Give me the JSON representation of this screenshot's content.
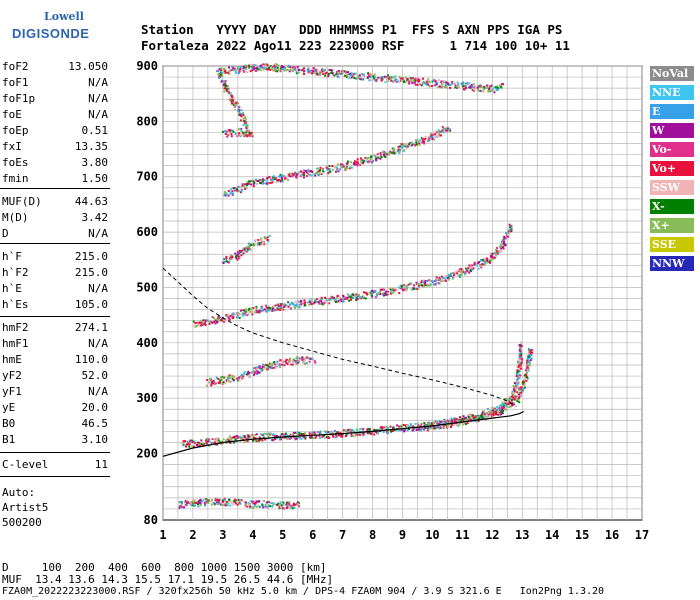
{
  "logo": {
    "line1": "Lowell",
    "line2": "DIGISONDE"
  },
  "header": {
    "row1": "Station   YYYY DAY   DDD HHMMSS P1  FFS S AXN PPS IGA PS",
    "row2": "Fortaleza 2022 Ago11 223 223000 RSF      1 714 100 10+ 11"
  },
  "params_group1": [
    {
      "k": "foF2",
      "v": "13.050"
    },
    {
      "k": "foF1",
      "v": "N/A"
    },
    {
      "k": "foF1p",
      "v": "N/A"
    },
    {
      "k": "foE",
      "v": "N/A"
    },
    {
      "k": "foEp",
      "v": "0.51"
    },
    {
      "k": "fxI",
      "v": "13.35"
    },
    {
      "k": "foEs",
      "v": "3.80"
    },
    {
      "k": "fmin",
      "v": "1.50"
    }
  ],
  "params_group2": [
    {
      "k": "MUF(D)",
      "v": "44.63"
    },
    {
      "k": "M(D)",
      "v": "3.42"
    },
    {
      "k": "D",
      "v": "N/A"
    }
  ],
  "params_group3": [
    {
      "k": "h`F",
      "v": "215.0"
    },
    {
      "k": "h`F2",
      "v": "215.0"
    },
    {
      "k": "h`E",
      "v": "N/A"
    },
    {
      "k": "h`Es",
      "v": "105.0"
    }
  ],
  "params_group4": [
    {
      "k": "hmF2",
      "v": "274.1"
    },
    {
      "k": "hmF1",
      "v": "N/A"
    },
    {
      "k": "hmE",
      "v": "110.0"
    },
    {
      "k": "yF2",
      "v": "52.0"
    },
    {
      "k": "yF1",
      "v": "N/A"
    },
    {
      "k": "yE",
      "v": "20.0"
    },
    {
      "k": "B0",
      "v": "46.5"
    },
    {
      "k": "B1",
      "v": "3.10"
    }
  ],
  "params_group5": [
    {
      "k": "C-level",
      "v": "11"
    }
  ],
  "side_text": {
    "auto": "Auto:",
    "artist": "Artist5",
    "version": "500200"
  },
  "legend": [
    {
      "label": "NoVal",
      "color": "#8c8c8c"
    },
    {
      "label": "NNE",
      "color": "#3fc6f0"
    },
    {
      "label": "E",
      "color": "#36a0e8"
    },
    {
      "label": "W",
      "color": "#a0109c"
    },
    {
      "label": "Vo-",
      "color": "#e0308c"
    },
    {
      "label": "Vo+",
      "color": "#e8103c"
    },
    {
      "label": "SSW",
      "color": "#f0b4b4"
    },
    {
      "label": "X-",
      "color": "#008000"
    },
    {
      "label": "X+",
      "color": "#88bc58"
    },
    {
      "label": "SSE",
      "color": "#c8c800"
    },
    {
      "label": "NNW",
      "color": "#2828b8"
    }
  ],
  "footer": {
    "d_row": "D     100  200  400  600  800 1000 1500 3000 [km]",
    "muf_row": "MUF  13.4 13.6 14.3 15.5 17.1 19.5 26.5 44.6 [MHz]",
    "file_row": "FZA0M_2022223223000.RSF / 320fx256h 50 kHz 5.0 km / DPS-4 FZA0M 904 / 3.9 S 321.6 E   Ion2Png 1.3.20"
  },
  "chart_data": {
    "type": "scatter",
    "xlabel": "",
    "ylabel": "",
    "xlim": [
      1,
      17
    ],
    "ylim": [
      80,
      900
    ],
    "x_ticks": [
      1,
      2,
      3,
      4,
      5,
      6,
      7,
      8,
      9,
      10,
      11,
      12,
      13,
      14,
      15,
      16,
      17
    ],
    "y_ticks": [
      80,
      200,
      300,
      400,
      500,
      600,
      700,
      800,
      900
    ],
    "grid": true,
    "traces": [
      {
        "name": "Es",
        "points": [
          [
            1.5,
            110
          ],
          [
            2.0,
            112
          ],
          [
            2.5,
            115
          ],
          [
            3.0,
            115
          ],
          [
            3.5,
            112
          ],
          [
            4.0,
            110
          ],
          [
            4.5,
            110
          ],
          [
            5.0,
            108
          ],
          [
            5.5,
            108
          ]
        ]
      },
      {
        "name": "F2 O-trace",
        "points": [
          [
            1.6,
            218
          ],
          [
            2.5,
            222
          ],
          [
            3.5,
            228
          ],
          [
            4.5,
            232
          ],
          [
            5.5,
            234
          ],
          [
            6.5,
            236
          ],
          [
            7.5,
            240
          ],
          [
            8.5,
            245
          ],
          [
            9.5,
            250
          ],
          [
            10.5,
            258
          ],
          [
            11.5,
            270
          ],
          [
            12.2,
            285
          ],
          [
            12.6,
            300
          ],
          [
            12.8,
            330
          ],
          [
            12.9,
            370
          ],
          [
            12.95,
            400
          ]
        ]
      },
      {
        "name": "F2 X-trace",
        "points": [
          [
            9.5,
            248
          ],
          [
            10.5,
            255
          ],
          [
            11.5,
            265
          ],
          [
            12.3,
            280
          ],
          [
            12.8,
            300
          ],
          [
            13.1,
            340
          ],
          [
            13.25,
            390
          ]
        ]
      },
      {
        "name": "F2 2nd hop",
        "points": [
          [
            2.0,
            435
          ],
          [
            3.0,
            445
          ],
          [
            4.0,
            460
          ],
          [
            5.0,
            468
          ],
          [
            6.0,
            475
          ],
          [
            7.0,
            482
          ],
          [
            8.0,
            490
          ],
          [
            9.0,
            500
          ],
          [
            10.0,
            512
          ],
          [
            11.0,
            530
          ],
          [
            11.8,
            550
          ],
          [
            12.3,
            575
          ],
          [
            12.6,
            610
          ]
        ]
      },
      {
        "name": "F2 3rd hop",
        "points": [
          [
            3.0,
            670
          ],
          [
            4.0,
            690
          ],
          [
            5.0,
            700
          ],
          [
            6.0,
            710
          ],
          [
            7.0,
            720
          ],
          [
            8.0,
            735
          ],
          [
            9.0,
            755
          ],
          [
            10.0,
            775
          ],
          [
            10.5,
            790
          ]
        ]
      },
      {
        "name": "Es multiple",
        "points": [
          [
            2.5,
            330
          ],
          [
            3.0,
            335
          ],
          [
            3.5,
            340
          ],
          [
            4.0,
            350
          ],
          [
            4.5,
            360
          ],
          [
            5.0,
            365
          ],
          [
            5.5,
            370
          ],
          [
            6.0,
            370
          ]
        ]
      },
      {
        "name": "Es multiple 2",
        "points": [
          [
            3.0,
            550
          ],
          [
            3.5,
            560
          ],
          [
            4.0,
            580
          ],
          [
            4.5,
            590
          ]
        ]
      },
      {
        "name": "high",
        "points": [
          [
            3.0,
            780
          ],
          [
            3.5,
            782
          ],
          [
            3.9,
            780
          ],
          [
            2.8,
            890
          ],
          [
            3.5,
            895
          ],
          [
            4.0,
            898
          ],
          [
            4.5,
            900
          ],
          [
            12.0,
            860
          ],
          [
            12.3,
            865
          ]
        ]
      }
    ],
    "profile_curve": [
      [
        1.0,
        195
      ],
      [
        2.0,
        210
      ],
      [
        3.0,
        220
      ],
      [
        4.0,
        226
      ],
      [
        5.0,
        230
      ],
      [
        6.0,
        233
      ],
      [
        7.0,
        236
      ],
      [
        8.0,
        240
      ],
      [
        9.0,
        245
      ],
      [
        10.0,
        250
      ],
      [
        11.0,
        257
      ],
      [
        12.0,
        264
      ],
      [
        12.6,
        268
      ],
      [
        12.9,
        272
      ],
      [
        13.05,
        276
      ]
    ],
    "muf_curve": [
      [
        1.0,
        535
      ],
      [
        1.5,
        510
      ],
      [
        2.0,
        485
      ],
      [
        2.5,
        462
      ],
      [
        3.0,
        445
      ],
      [
        3.5,
        430
      ],
      [
        4.0,
        418
      ],
      [
        5.0,
        400
      ],
      [
        6.0,
        385
      ],
      [
        7.0,
        370
      ],
      [
        8.0,
        358
      ],
      [
        9.0,
        345
      ],
      [
        10.0,
        333
      ],
      [
        11.0,
        320
      ],
      [
        12.0,
        305
      ],
      [
        12.5,
        295
      ],
      [
        12.8,
        285
      ]
    ]
  }
}
